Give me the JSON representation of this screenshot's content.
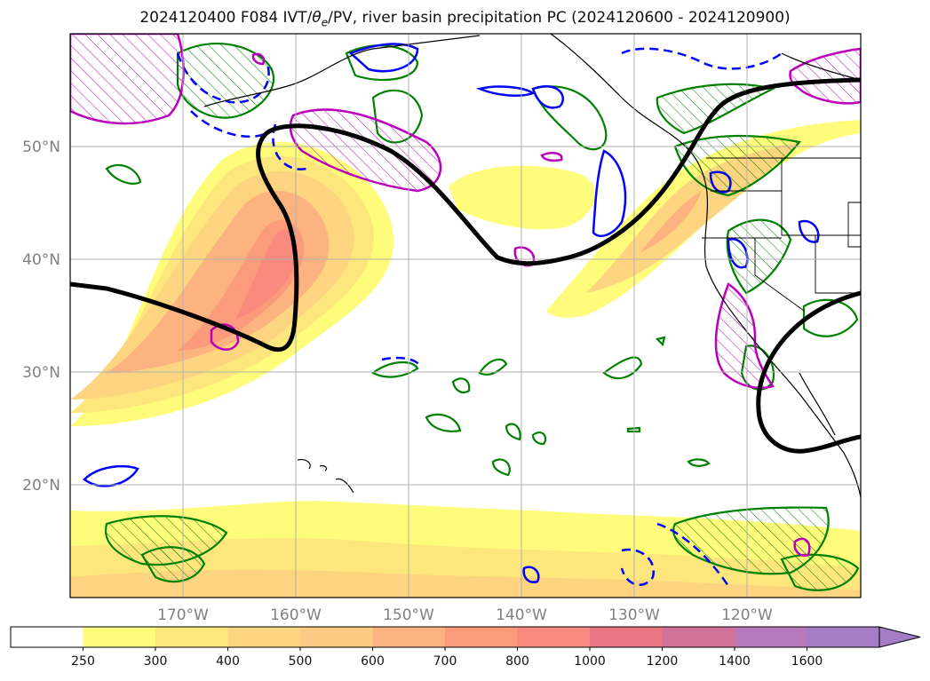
{
  "title_main": "2024120400 F084 IVT/",
  "title_theta": "θ",
  "title_sub": "e",
  "title_rest": "/PV, river basin precipitation PC (2024120600 - 2024120900)",
  "lat_labels": [
    "50°N",
    "40°N",
    "30°N",
    "20°N"
  ],
  "lon_labels": [
    "170°W",
    "160°W",
    "150°W",
    "140°W",
    "130°W",
    "120°W"
  ],
  "colorbar": {
    "levels": [
      "250",
      "300",
      "400",
      "500",
      "600",
      "700",
      "800",
      "1000",
      "1200",
      "1400",
      "1600"
    ],
    "colors": [
      "#ffffff",
      "#fefc7a",
      "#fde77d",
      "#fdd580",
      "#fdca84",
      "#fcb37f",
      "#fb9b7b",
      "#f98a7d",
      "#e87484",
      "#d1729a",
      "#b77bbd",
      "#a57dc6"
    ]
  },
  "colors": {
    "theta_e": "#008000",
    "pv_dashed": "#0000ff",
    "pv_solid": "#0000ff",
    "precip": "#bb00bb",
    "jet_line": "#000000"
  }
}
